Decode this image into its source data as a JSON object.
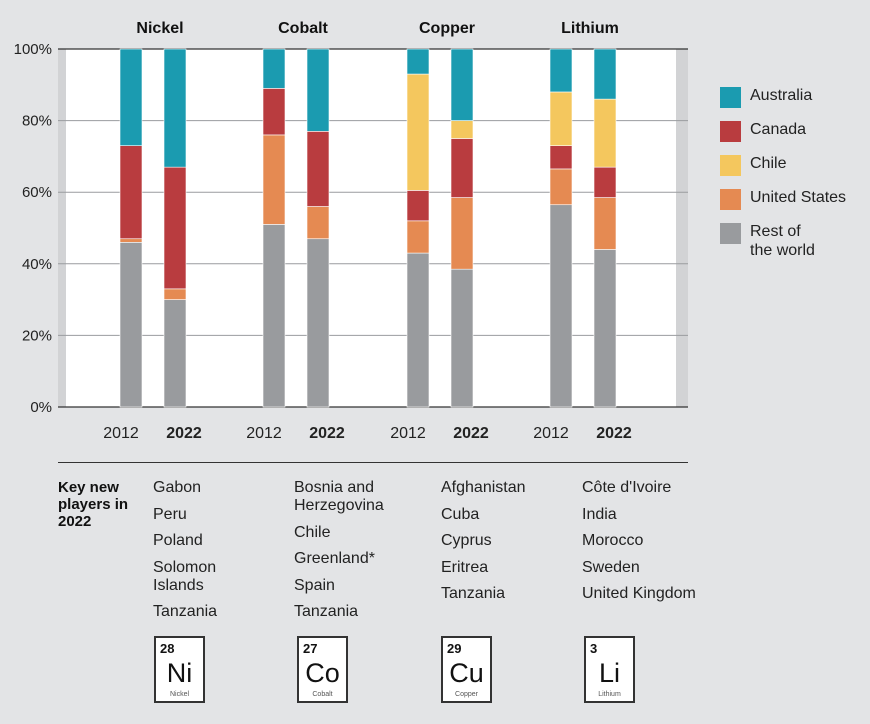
{
  "chart_data": {
    "type": "bar",
    "stacked": true,
    "y_tick_labels": [
      "0%",
      "20%",
      "40%",
      "60%",
      "80%",
      "100%"
    ],
    "ylim": [
      0,
      100
    ],
    "grid": true,
    "legend_placement": "right",
    "groups": [
      {
        "name": "Nickel",
        "bars": [
          {
            "year": "2012",
            "values": {
              "Rest of the world": 46,
              "United States": 1,
              "Chile": 0,
              "Canada": 26,
              "Australia": 27
            }
          },
          {
            "year": "2022",
            "values": {
              "Rest of the world": 30,
              "United States": 3,
              "Chile": 0,
              "Canada": 34,
              "Australia": 33
            }
          }
        ]
      },
      {
        "name": "Cobalt",
        "bars": [
          {
            "year": "2012",
            "values": {
              "Rest of the world": 51,
              "United States": 25,
              "Chile": 0,
              "Canada": 13,
              "Australia": 11
            }
          },
          {
            "year": "2022",
            "values": {
              "Rest of the world": 47,
              "United States": 9,
              "Chile": 0,
              "Canada": 21,
              "Australia": 23
            }
          }
        ]
      },
      {
        "name": "Copper",
        "bars": [
          {
            "year": "2012",
            "values": {
              "Rest of the world": 43,
              "United States": 9,
              "Chile": 0,
              "Canada": 8.5,
              "Australia": 0,
              "_chile": 32.5,
              "_aus": 7
            }
          },
          {
            "year": "2022",
            "values": {
              "Rest of the world": 38.5,
              "United States": 20,
              "Chile": 0,
              "Canada": 16.5,
              "Australia": 0,
              "_chile": 5,
              "_aus": 20
            }
          }
        ]
      },
      {
        "name": "Lithium",
        "bars": [
          {
            "year": "2012",
            "values": {
              "Rest of the world": 56.5,
              "United States": 10,
              "Chile": 0,
              "Canada": 6.5,
              "Australia": 0,
              "_chile": 15,
              "_aus": 12
            }
          },
          {
            "year": "2022",
            "values": {
              "Rest of the world": 44,
              "United States": 14.5,
              "Chile": 0,
              "Canada": 8.5,
              "Australia": 0,
              "_chile": 19,
              "_aus": 14
            }
          }
        ]
      }
    ],
    "series": [
      {
        "name": "Rest of the world",
        "legend_label": "Rest of\nthe world",
        "color": "#999b9e"
      },
      {
        "name": "United States",
        "color": "#e58a52"
      },
      {
        "name": "Chile",
        "color": "#f4c75e"
      },
      {
        "name": "Canada",
        "color": "#b93c3f"
      },
      {
        "name": "Australia",
        "color": "#1b9bb0"
      }
    ]
  },
  "legend": [
    {
      "label": "Australia",
      "color": "#1b9bb0"
    },
    {
      "label": "Canada",
      "color": "#b93c3f"
    },
    {
      "label": "Chile",
      "color": "#f4c75e"
    },
    {
      "label": "United States",
      "color": "#e58a52"
    },
    {
      "label": "Rest of the world",
      "color": "#999b9e"
    }
  ],
  "key_new_players": {
    "heading": "Key new players in 2022",
    "Nickel": [
      "Gabon",
      "Peru",
      "Poland",
      "Solomon Islands",
      "Tanzania"
    ],
    "Cobalt": [
      "Bosnia and Herzegovina",
      "Chile",
      "Greenland*",
      "Spain",
      "Tanzania"
    ],
    "Copper": [
      "Afghanistan",
      "Cuba",
      "Cyprus",
      "Eritrea",
      "Tanzania"
    ],
    "Lithium": [
      "Côte d'Ivoire",
      "India",
      "Morocco",
      "Sweden",
      "United Kingdom"
    ]
  },
  "elements": [
    {
      "number": "28",
      "symbol": "Ni",
      "name": "Nickel"
    },
    {
      "number": "27",
      "symbol": "Co",
      "name": "Cobalt"
    },
    {
      "number": "29",
      "symbol": "Cu",
      "name": "Copper"
    },
    {
      "number": "3",
      "symbol": "Li",
      "name": "Lithium"
    }
  ]
}
